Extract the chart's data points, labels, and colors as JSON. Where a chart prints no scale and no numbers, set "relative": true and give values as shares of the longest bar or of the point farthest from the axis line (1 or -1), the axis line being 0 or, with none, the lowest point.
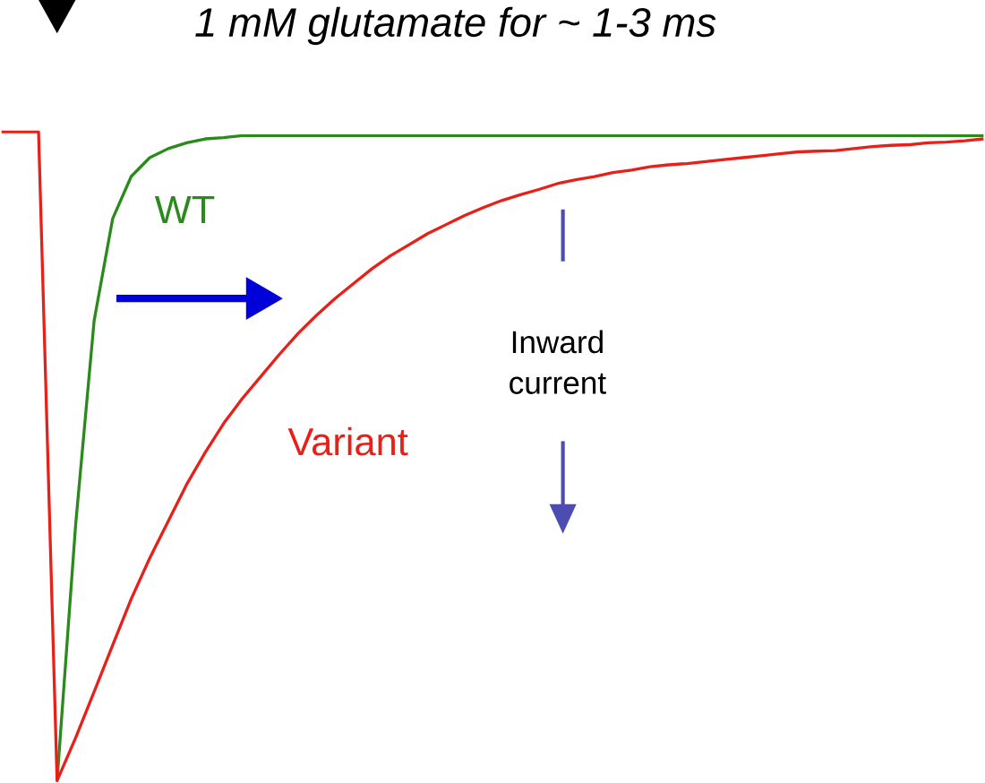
{
  "chart_data": {
    "type": "line",
    "title": "1 mM glutamate for ~ 1-3 ms",
    "relative": true,
    "categories": [
      null,
      null,
      null,
      null,
      null,
      null,
      null,
      null,
      null,
      null,
      null,
      null,
      null,
      null,
      null,
      null,
      null,
      null,
      null,
      null,
      null,
      null,
      null,
      null,
      null,
      null,
      null,
      null,
      null,
      null,
      null,
      null,
      null,
      null,
      null,
      null,
      null,
      null,
      null,
      null,
      null,
      null,
      null,
      null,
      null,
      null,
      null,
      null,
      null,
      null,
      null,
      null,
      null,
      null
    ],
    "series": [
      {
        "name": "WT",
        "color": "#2a8a1c",
        "values": [
          null,
          null,
          null,
          0,
          0.394,
          0.709,
          0.866,
          0.931,
          0.96,
          0.974,
          0.983,
          0.989,
          0.991,
          0.994,
          0.994,
          0.994,
          0.994,
          0.994,
          0.994,
          0.994,
          0.994,
          0.994,
          0.994,
          0.994,
          0.994,
          0.994,
          0.994,
          0.994,
          0.994,
          0.994,
          0.994,
          0.994,
          0.994,
          0.994,
          0.994,
          0.994,
          0.994,
          0.994,
          0.994,
          0.994,
          0.994,
          0.994,
          0.994,
          0.994,
          0.994,
          0.994,
          0.994,
          0.994,
          0.994,
          0.994,
          0.994,
          0.994,
          0.994,
          0.994
        ]
      },
      {
        "name": "Variant",
        "color": "#e8201a",
        "values": [
          1,
          1,
          1,
          0,
          0.066,
          0.137,
          0.209,
          0.28,
          0.343,
          0.4,
          0.457,
          0.506,
          0.551,
          0.589,
          0.623,
          0.657,
          0.689,
          0.717,
          0.743,
          0.766,
          0.789,
          0.809,
          0.826,
          0.843,
          0.857,
          0.871,
          0.883,
          0.894,
          0.903,
          0.911,
          0.92,
          0.926,
          0.931,
          0.937,
          0.941,
          0.946,
          0.949,
          0.951,
          0.954,
          0.957,
          0.96,
          0.963,
          0.966,
          0.969,
          0.97,
          0.971,
          0.974,
          0.977,
          0.979,
          0.98,
          0.983,
          0.984,
          0.986,
          0.989
        ]
      }
    ],
    "annotations": [
      "Inward current"
    ]
  }
}
